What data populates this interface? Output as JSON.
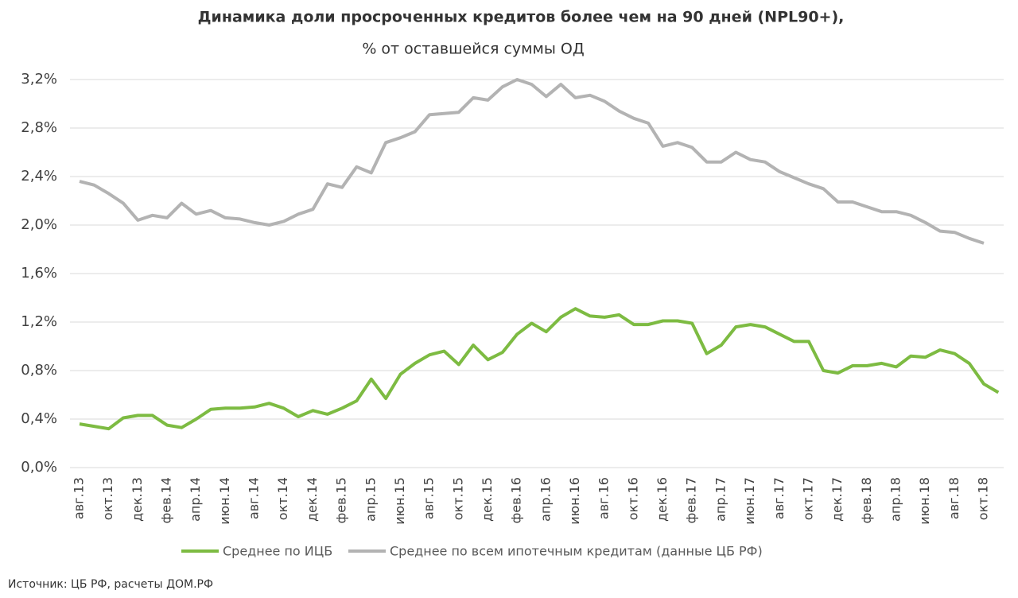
{
  "chart_data": {
    "type": "line",
    "title": "Динамика доли просроченных кредитов более чем на 90 дней (NPL90+),",
    "subtitle": "% от оставшейся суммы ОД",
    "source": "Источник: ЦБ РФ, расчеты ДОМ.РФ",
    "categories": [
      "авг.13",
      null,
      "окт.13",
      null,
      "дек.13",
      null,
      "фев.14",
      null,
      "апр.14",
      null,
      "июн.14",
      null,
      "авг.14",
      null,
      "окт.14",
      null,
      "дек.14",
      null,
      "фев.15",
      null,
      "апр.15",
      null,
      "июн.15",
      null,
      "авг.15",
      null,
      "окт.15",
      null,
      "дек.15",
      null,
      "фев.16",
      null,
      "апр.16",
      null,
      "июн.16",
      null,
      "авг.16",
      null,
      "окт.16",
      null,
      "дек.16",
      null,
      "фев.17",
      null,
      "апр.17",
      null,
      "июн.17",
      null,
      "авг.17",
      null,
      "окт.17",
      null,
      "дек.17",
      null,
      "фев.18",
      null,
      "апр.18",
      null,
      "июн.18",
      null,
      "авг.18",
      null,
      "окт.18",
      null
    ],
    "series": [
      {
        "name": "Среднее по ИЦБ",
        "color": "#7dbb42",
        "values": [
          0.36,
          0.34,
          0.32,
          0.41,
          0.43,
          0.43,
          0.35,
          0.33,
          0.4,
          0.48,
          0.49,
          0.49,
          0.5,
          0.53,
          0.49,
          0.42,
          0.47,
          0.44,
          0.49,
          0.55,
          0.73,
          0.57,
          0.77,
          0.86,
          0.93,
          0.96,
          0.85,
          1.01,
          0.89,
          0.95,
          1.1,
          1.19,
          1.12,
          1.24,
          1.31,
          1.25,
          1.24,
          1.26,
          1.18,
          1.18,
          1.21,
          1.21,
          1.19,
          0.94,
          1.01,
          1.16,
          1.18,
          1.16,
          1.1,
          1.04,
          1.04,
          0.8,
          0.78,
          0.84,
          0.84,
          0.86,
          0.83,
          0.92,
          0.91,
          0.97,
          0.94,
          0.86,
          0.69,
          0.62
        ]
      },
      {
        "name": "Среднее по всем ипотечным кредитам (данные ЦБ РФ)",
        "color": "#b3b3b3",
        "values": [
          2.36,
          2.33,
          2.26,
          2.18,
          2.04,
          2.08,
          2.06,
          2.18,
          2.09,
          2.12,
          2.06,
          2.05,
          2.02,
          2.0,
          2.03,
          2.09,
          2.13,
          2.34,
          2.31,
          2.48,
          2.43,
          2.68,
          2.72,
          2.77,
          2.91,
          2.92,
          2.93,
          3.05,
          3.03,
          3.14,
          3.2,
          3.16,
          3.06,
          3.16,
          3.05,
          3.07,
          3.02,
          2.94,
          2.88,
          2.84,
          2.65,
          2.68,
          2.64,
          2.52,
          2.52,
          2.6,
          2.54,
          2.52,
          2.44,
          2.39,
          2.34,
          2.3,
          2.19,
          2.19,
          2.15,
          2.11,
          2.11,
          2.08,
          2.02,
          1.95,
          1.94,
          1.89,
          1.85,
          null
        ]
      }
    ],
    "ylim": [
      0,
      3.2
    ],
    "yticks": [
      {
        "value": 0,
        "label": "0,0%"
      },
      {
        "value": 0.4,
        "label": "0,4%"
      },
      {
        "value": 0.8,
        "label": "0,8%"
      },
      {
        "value": 1.2,
        "label": "1,2%"
      },
      {
        "value": 1.6,
        "label": "1,6%"
      },
      {
        "value": 2.0,
        "label": "2,0%"
      },
      {
        "value": 2.4,
        "label": "2,4%"
      },
      {
        "value": 2.8,
        "label": "2,8%"
      },
      {
        "value": 3.2,
        "label": "3,2%"
      }
    ],
    "grid": true,
    "legend": "bottom"
  }
}
